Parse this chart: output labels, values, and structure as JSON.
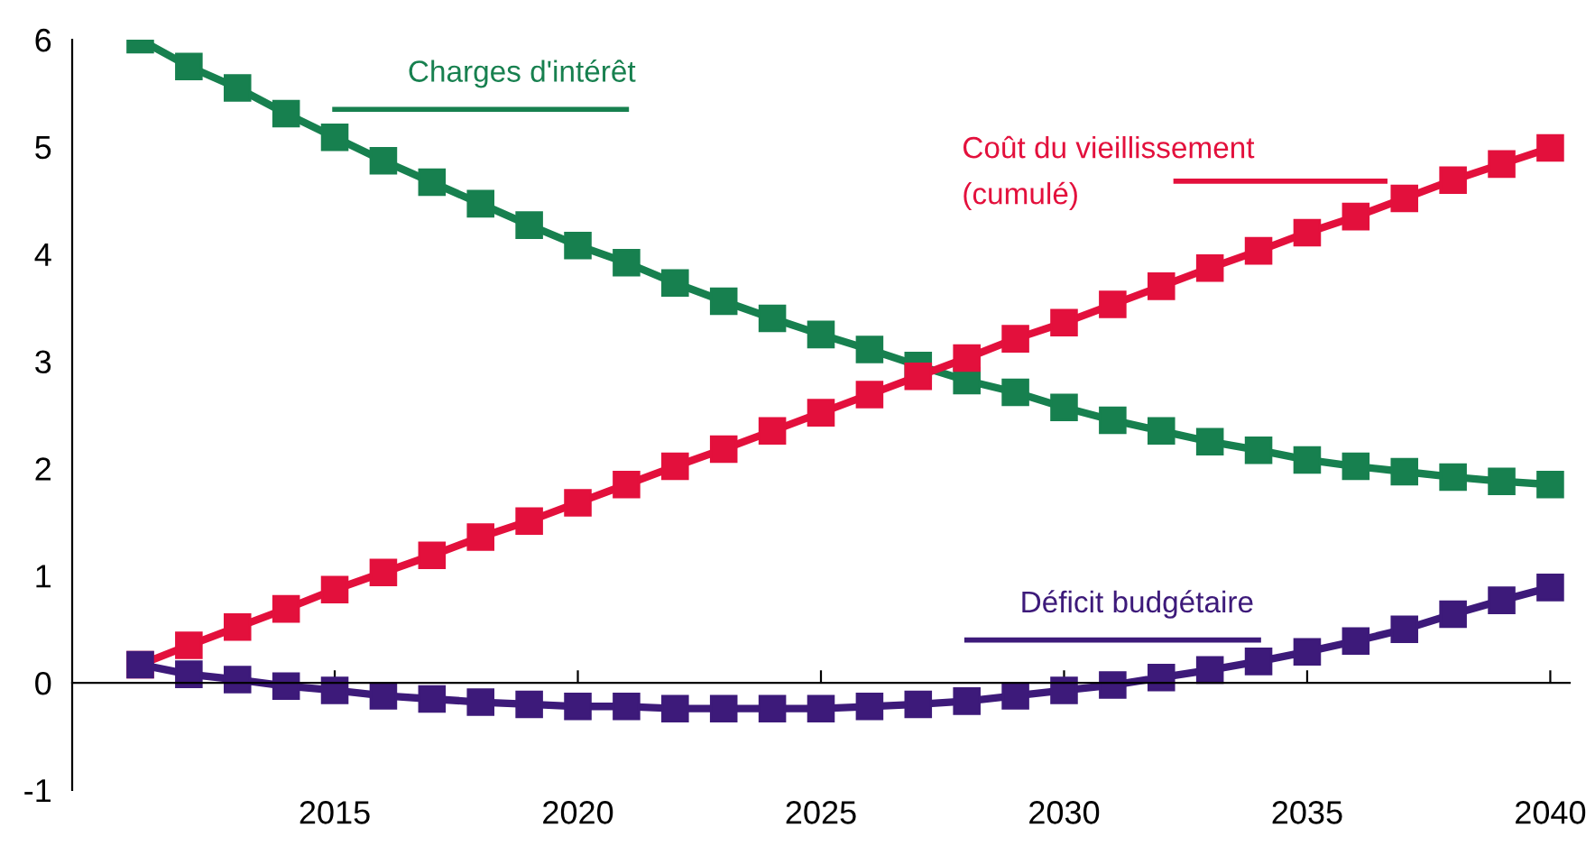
{
  "chart_data": {
    "type": "line",
    "x": [
      2011,
      2012,
      2013,
      2014,
      2015,
      2016,
      2017,
      2018,
      2019,
      2020,
      2021,
      2022,
      2023,
      2024,
      2025,
      2026,
      2027,
      2028,
      2029,
      2030,
      2031,
      2032,
      2033,
      2034,
      2035,
      2036,
      2037,
      2038,
      2039,
      2040
    ],
    "series": [
      {
        "name": "Charges d'intérêt",
        "color": "#17804f",
        "values": [
          6.0,
          5.75,
          5.55,
          5.31,
          5.09,
          4.87,
          4.67,
          4.47,
          4.27,
          4.08,
          3.92,
          3.73,
          3.56,
          3.4,
          3.25,
          3.11,
          2.96,
          2.82,
          2.71,
          2.57,
          2.45,
          2.35,
          2.25,
          2.17,
          2.08,
          2.02,
          1.97,
          1.92,
          1.88,
          1.85
        ]
      },
      {
        "name": "Coût du vieillissement\n(cumulé)",
        "color": "#e3103c",
        "values": [
          0.17,
          0.35,
          0.52,
          0.69,
          0.87,
          1.03,
          1.19,
          1.36,
          1.51,
          1.68,
          1.85,
          2.02,
          2.18,
          2.35,
          2.52,
          2.69,
          2.86,
          3.03,
          3.21,
          3.36,
          3.53,
          3.7,
          3.87,
          4.03,
          4.2,
          4.35,
          4.52,
          4.69,
          4.84,
          4.99
        ]
      },
      {
        "name": "Déficit budgétaire",
        "color": "#3d1a7a",
        "values": [
          0.17,
          0.08,
          0.03,
          -0.03,
          -0.07,
          -0.12,
          -0.15,
          -0.18,
          -0.2,
          -0.22,
          -0.22,
          -0.24,
          -0.24,
          -0.24,
          -0.24,
          -0.22,
          -0.2,
          -0.17,
          -0.12,
          -0.07,
          -0.02,
          0.05,
          0.12,
          0.2,
          0.29,
          0.39,
          0.5,
          0.64,
          0.77,
          0.89
        ]
      }
    ],
    "xlim": [
      2009.6,
      2040.4
    ],
    "xticks": [
      2015,
      2020,
      2025,
      2030,
      2035,
      2040
    ],
    "ylim": [
      -1,
      6
    ],
    "yticks": [
      -1,
      0,
      1,
      2,
      3,
      4,
      5,
      6
    ],
    "marker": "square",
    "line_style": "solid",
    "legend": false
  }
}
